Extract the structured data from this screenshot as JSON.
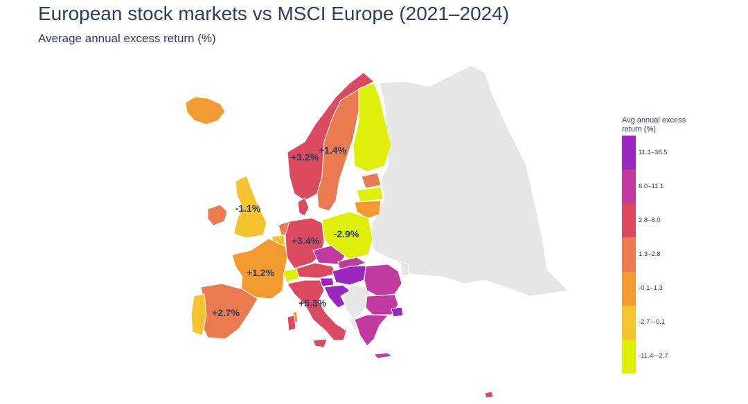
{
  "title": "European stock markets vs MSCI Europe (2021–2024)",
  "subtitle": "Average annual excess return (%)",
  "legend": {
    "title": "Avg annual excess return (%)",
    "bins": [
      {
        "label": "11.1–36.5",
        "color": "#9b27c0"
      },
      {
        "label": "6.0–11.1",
        "color": "#c13aa0"
      },
      {
        "label": "2.8–6.0",
        "color": "#dc4a60"
      },
      {
        "label": "1.3–2.8",
        "color": "#ea7a50"
      },
      {
        "label": "-0.1–1.3",
        "color": "#f39a30"
      },
      {
        "label": "-2.7–-0.1",
        "color": "#f3c430"
      },
      {
        "label": "-11.4–-2.7",
        "color": "#deef0a"
      }
    ]
  },
  "colors": {
    "no_data": "#e6e6e6",
    "border": "#ffffff",
    "label_text": "#2a3f5f"
  },
  "map_labels": [
    {
      "country": "Norway",
      "text": "+3.2%"
    },
    {
      "country": "Sweden",
      "text": "+1.4%"
    },
    {
      "country": "United Kingdom",
      "text": "-1.1%"
    },
    {
      "country": "Germany",
      "text": "+3.4%"
    },
    {
      "country": "Poland",
      "text": "-2.9%"
    },
    {
      "country": "France",
      "text": "+1.2%"
    },
    {
      "country": "Spain",
      "text": "+2.7%"
    },
    {
      "country": "Italy",
      "text": "+5.3%"
    }
  ],
  "countries": [
    {
      "name": "Iceland",
      "bin": 4
    },
    {
      "name": "Norway",
      "bin": 2
    },
    {
      "name": "Sweden",
      "bin": 3
    },
    {
      "name": "Finland",
      "bin": 6
    },
    {
      "name": "Estonia",
      "bin": 3
    },
    {
      "name": "Latvia",
      "bin": 6
    },
    {
      "name": "Lithuania",
      "bin": 4
    },
    {
      "name": "Denmark",
      "bin": 2
    },
    {
      "name": "Ireland",
      "bin": 3
    },
    {
      "name": "United Kingdom",
      "bin": 5
    },
    {
      "name": "Netherlands",
      "bin": 3
    },
    {
      "name": "Belgium",
      "bin": 5
    },
    {
      "name": "Luxembourg",
      "bin": 5
    },
    {
      "name": "Germany",
      "bin": 2
    },
    {
      "name": "Poland",
      "bin": 6
    },
    {
      "name": "Czechia",
      "bin": 1
    },
    {
      "name": "Austria",
      "bin": 2
    },
    {
      "name": "Switzerland",
      "bin": 6
    },
    {
      "name": "Slovakia",
      "bin": 1
    },
    {
      "name": "Hungary",
      "bin": 0
    },
    {
      "name": "Slovenia",
      "bin": 0
    },
    {
      "name": "Croatia",
      "bin": 0
    },
    {
      "name": "Romania",
      "bin": 1
    },
    {
      "name": "Bulgaria",
      "bin": 1
    },
    {
      "name": "Greece",
      "bin": 1
    },
    {
      "name": "Turkey (European part)",
      "bin": 0
    },
    {
      "name": "France",
      "bin": 4
    },
    {
      "name": "Spain",
      "bin": 3
    },
    {
      "name": "Portugal",
      "bin": 5
    },
    {
      "name": "Italy",
      "bin": 2
    },
    {
      "name": "Cyprus",
      "bin": 2
    }
  ]
}
